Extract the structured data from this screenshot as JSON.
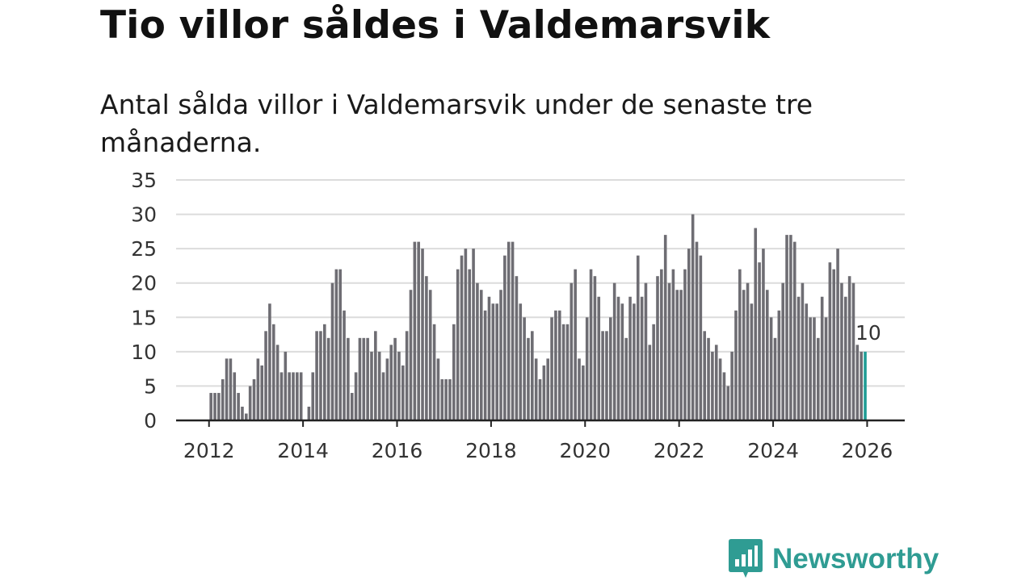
{
  "title": "Tio villor såldes i Valdemarsvik",
  "subtitle": "Antal sålda villor i Valdemarsvik under de senaste tre månaderna.",
  "brand": {
    "name": "Newsworthy",
    "color": "#2f9c93"
  },
  "colors": {
    "bar": "#6e6d73",
    "highlight": "#1f9c95",
    "grid": "#dcdcdc",
    "axis": "#222222"
  },
  "chart_data": {
    "type": "bar",
    "title": "Tio villor såldes i Valdemarsvik",
    "xlabel": "",
    "ylabel": "",
    "ylim": [
      0,
      35
    ],
    "yticks": [
      0,
      5,
      10,
      15,
      20,
      25,
      30,
      35
    ],
    "xlim": [
      2011.3,
      2026.8
    ],
    "xticks": [
      2012,
      2014,
      2016,
      2018,
      2020,
      2022,
      2024,
      2026
    ],
    "start": {
      "year": 2012,
      "month": 1
    },
    "end": {
      "year": 2026,
      "month": 2
    },
    "highlight_label": "10",
    "values": [
      4,
      4,
      4,
      6,
      9,
      9,
      7,
      4,
      2,
      1,
      5,
      6,
      9,
      8,
      13,
      17,
      14,
      11,
      7,
      10,
      7,
      7,
      7,
      7,
      0,
      2,
      7,
      13,
      13,
      14,
      12,
      20,
      22,
      22,
      16,
      12,
      4,
      7,
      12,
      12,
      12,
      10,
      13,
      10,
      7,
      9,
      11,
      12,
      10,
      8,
      13,
      19,
      26,
      26,
      25,
      21,
      19,
      14,
      9,
      6,
      6,
      6,
      14,
      22,
      24,
      25,
      22,
      25,
      20,
      19,
      16,
      18,
      17,
      17,
      19,
      24,
      26,
      26,
      21,
      17,
      15,
      12,
      13,
      9,
      6,
      8,
      9,
      15,
      16,
      16,
      14,
      14,
      20,
      22,
      9,
      8,
      15,
      22,
      21,
      18,
      13,
      13,
      15,
      20,
      18,
      17,
      12,
      18,
      17,
      24,
      18,
      20,
      11,
      14,
      21,
      22,
      27,
      20,
      22,
      19,
      19,
      22,
      25,
      30,
      26,
      24,
      13,
      12,
      10,
      11,
      9,
      7,
      5,
      10,
      16,
      22,
      19,
      20,
      17,
      28,
      23,
      25,
      19,
      15,
      12,
      16,
      20,
      27,
      27,
      26,
      18,
      20,
      17,
      15,
      15,
      12,
      18,
      15,
      23,
      22,
      25,
      20,
      18,
      21,
      20,
      11,
      10,
      10
    ]
  }
}
